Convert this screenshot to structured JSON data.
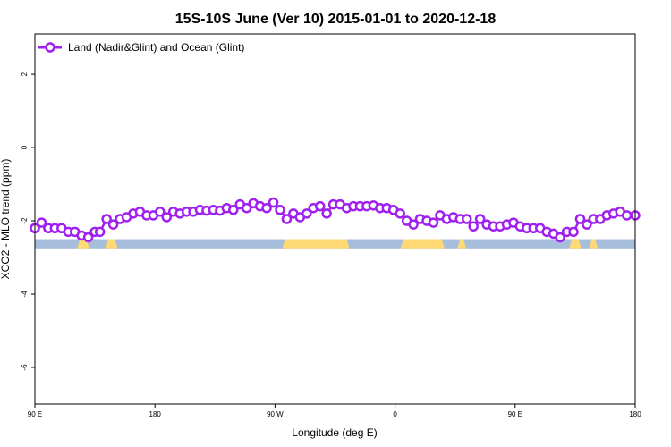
{
  "chart_data": {
    "type": "line",
    "title": "15S-10S June (Ver 10)   2015-01-01 to 2020-12-18",
    "xlabel": "Longitude (deg E)",
    "ylabel": "XCO2 - MLO trend (ppm)",
    "xlim": [
      90,
      450
    ],
    "ylim": [
      -7,
      3.1
    ],
    "x_ticks": [
      {
        "value": 90,
        "label": "90 E"
      },
      {
        "value": 162,
        "label": "180"
      },
      {
        "value": 234,
        "label": "90 W"
      },
      {
        "value": 306,
        "label": "0"
      },
      {
        "value": 378,
        "label": "90 E"
      },
      {
        "value": 450,
        "label": "180"
      }
    ],
    "y_ticks": [
      {
        "value": 2,
        "label": "2"
      },
      {
        "value": 0,
        "label": "0"
      },
      {
        "value": -2,
        "label": "-2"
      },
      {
        "value": -4,
        "label": "-4"
      },
      {
        "value": -6,
        "label": "-6"
      }
    ],
    "grid": false,
    "legend_position": "top-left",
    "colors": {
      "series": "#a020f0",
      "ocean": "#a6bddb",
      "land": "#fed976"
    },
    "land_mask": {
      "y_range": [
        -2.75,
        -2.5
      ],
      "land_segments": [
        [
          117,
          121
        ],
        [
          134,
          138
        ],
        [
          240,
          277
        ],
        [
          311,
          334
        ],
        [
          345,
          347
        ],
        [
          412,
          416
        ],
        [
          424,
          426
        ]
      ]
    },
    "series": [
      {
        "name": "Land (Nadir&Glint) and Ocean (Glint)",
        "x": [
          90,
          94,
          98,
          102,
          106,
          110,
          114,
          118,
          122,
          126,
          129,
          133,
          137,
          141,
          145,
          149,
          153,
          157,
          161,
          165,
          169,
          173,
          177,
          181,
          185,
          189,
          193,
          197,
          201,
          205,
          209,
          213,
          217,
          221,
          225,
          229,
          233,
          237,
          241,
          245,
          249,
          253,
          257,
          261,
          265,
          269,
          273,
          277,
          281,
          285,
          289,
          293,
          297,
          301,
          305,
          309,
          313,
          317,
          321,
          325,
          329,
          333,
          337,
          341,
          345,
          349,
          353,
          357,
          361,
          365,
          369,
          373,
          377,
          381,
          385,
          389,
          393,
          397,
          401,
          405,
          409,
          413,
          417,
          421,
          425,
          429,
          433,
          437,
          441,
          445,
          450
        ],
        "y": [
          -2.2,
          -2.05,
          -2.2,
          -2.2,
          -2.2,
          -2.3,
          -2.3,
          -2.4,
          -2.45,
          -2.3,
          -2.3,
          -1.95,
          -2.1,
          -1.95,
          -1.9,
          -1.8,
          -1.75,
          -1.85,
          -1.85,
          -1.75,
          -1.9,
          -1.75,
          -1.8,
          -1.75,
          -1.75,
          -1.7,
          -1.72,
          -1.7,
          -1.72,
          -1.65,
          -1.7,
          -1.55,
          -1.65,
          -1.52,
          -1.6,
          -1.65,
          -1.5,
          -1.7,
          -1.95,
          -1.8,
          -1.9,
          -1.8,
          -1.65,
          -1.6,
          -1.8,
          -1.55,
          -1.55,
          -1.65,
          -1.6,
          -1.6,
          -1.6,
          -1.58,
          -1.65,
          -1.65,
          -1.7,
          -1.8,
          -2.0,
          -2.1,
          -1.95,
          -2.0,
          -2.05,
          -1.85,
          -1.95,
          -1.9,
          -1.95,
          -1.95,
          -2.15,
          -1.95,
          -2.1,
          -2.15,
          -2.15,
          -2.1,
          -2.05,
          -2.15,
          -2.2,
          -2.2,
          -2.2,
          -2.3,
          -2.35,
          -2.45,
          -2.3,
          -2.3,
          -1.95,
          -2.1,
          -1.95,
          -1.95,
          -1.85,
          -1.8,
          -1.75,
          -1.85,
          -1.85
        ]
      }
    ]
  }
}
